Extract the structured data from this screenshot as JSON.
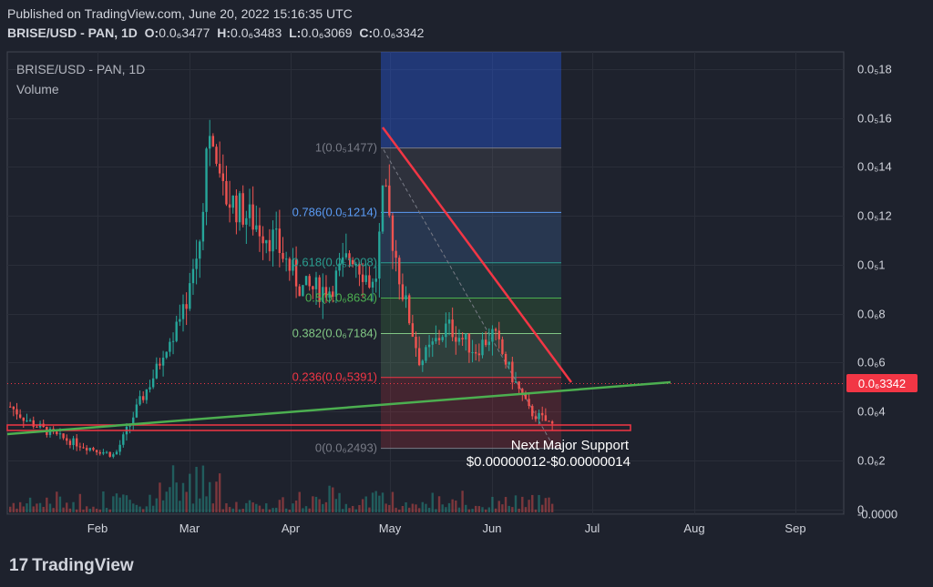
{
  "header": {
    "published": "Published on TradingView.com, June 20, 2022 15:16:35 UTC",
    "symbol": "BRISE/USD - PAN, 1D",
    "o_label": "O:",
    "o_value": "0.0₆3477",
    "h_label": "H:",
    "h_value": "0.0₆3483",
    "l_label": "L:",
    "l_value": "0.0₆3069",
    "c_label": "C:",
    "c_value": "0.0₆3342"
  },
  "legend": {
    "symbol": "BRISE/USD - PAN, 1D",
    "volume": "Volume"
  },
  "footer": {
    "brand": "TradingView",
    "mark": "17"
  },
  "colors": {
    "up": "#26a69a",
    "down": "#ef5350",
    "background": "#1e222d",
    "grid": "#2a2e39",
    "trend_green": "#4caf50",
    "trend_red": "#f23645"
  },
  "chart_data": {
    "type": "candlestick",
    "title": "BRISE/USD - PAN, 1D",
    "x_ticks": [
      "Feb",
      "Mar",
      "Apr",
      "May",
      "Jun",
      "Jul",
      "Aug",
      "Sep"
    ],
    "y_ticks": [
      "0.0₅18",
      "0.0₅16",
      "0.0₅14",
      "0.0₅12",
      "0.0₅1",
      "0.0₆8",
      "0.0₆6",
      "0.0₆4",
      "0.0₆2",
      "0",
      "-0.0000"
    ],
    "ylim": [
      -2e-10,
      1.87e-08
    ],
    "last_price_label": "0.0₆3342",
    "fibonacci": [
      {
        "ratio": "1",
        "label": "1(0.0₅1477)",
        "value": 1.477e-08
      },
      {
        "ratio": "0.786",
        "label": "0.786(0.0₅1214)",
        "value": 1.214e-08
      },
      {
        "ratio": "0.618",
        "label": "0.618(0.0₅1008)",
        "value": 1.008e-08
      },
      {
        "ratio": "0.5",
        "label": "0.5(0.0₆8634)",
        "value": 8.634e-09
      },
      {
        "ratio": "0.382",
        "label": "0.382(0.0₆7184)",
        "value": 7.184e-09
      },
      {
        "ratio": "0.236",
        "label": "0.236(0.0₆5391)",
        "value": 5.391e-09
      },
      {
        "ratio": "0",
        "label": "0(0.0₆2493)",
        "value": 2.493e-09
      }
    ],
    "annotation": [
      "Next Major Support",
      "$0.00000012-$0.00000014"
    ],
    "trendlines": [
      {
        "name": "support",
        "from": [
          0,
          1.2e-09
        ],
        "to": [
          0.8,
          3.3e-09
        ]
      },
      {
        "name": "resistance",
        "from": [
          0.47,
          1.47e-08
        ],
        "to": [
          0.73,
          3.4e-09
        ]
      }
    ]
  }
}
